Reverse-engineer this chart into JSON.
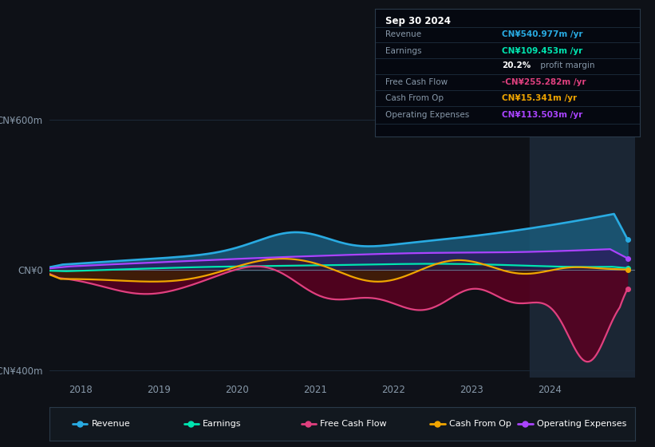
{
  "bg_color": "#0e1117",
  "ylabel_top": "CN¥600m",
  "ylabel_zero": "CN¥0",
  "ylabel_bottom": "-CN¥400m",
  "x_labels": [
    "2018",
    "2019",
    "2020",
    "2021",
    "2022",
    "2023",
    "2024"
  ],
  "colors": {
    "revenue": "#29abe2",
    "earnings": "#00e5b0",
    "free_cash_flow": "#e0407f",
    "cash_from_op": "#f0a500",
    "operating_expenses": "#aa44ff"
  },
  "legend": [
    {
      "label": "Revenue",
      "color": "#29abe2"
    },
    {
      "label": "Earnings",
      "color": "#00e5b0"
    },
    {
      "label": "Free Cash Flow",
      "color": "#e0407f"
    },
    {
      "label": "Cash From Op",
      "color": "#f0a500"
    },
    {
      "label": "Operating Expenses",
      "color": "#aa44ff"
    }
  ],
  "ylim": [
    -430,
    640
  ],
  "xlim": [
    2017.6,
    2025.1
  ],
  "highlight_start": 2023.75,
  "box_title": "Sep 30 2024",
  "table_rows": [
    {
      "label": "Revenue",
      "value": "CN¥540.977m /yr",
      "color": "#29abe2",
      "extra": null
    },
    {
      "label": "Earnings",
      "value": "CN¥109.453m /yr",
      "color": "#00e5b0",
      "extra": "20.2% profit margin"
    },
    {
      "label": "Free Cash Flow",
      "value": "-CN¥255.282m /yr",
      "color": "#e0407f",
      "extra": null
    },
    {
      "label": "Cash From Op",
      "value": "CN¥15.341m /yr",
      "color": "#f0a500",
      "extra": null
    },
    {
      "label": "Operating Expenses",
      "value": "CN¥113.503m /yr",
      "color": "#aa44ff",
      "extra": null
    }
  ]
}
